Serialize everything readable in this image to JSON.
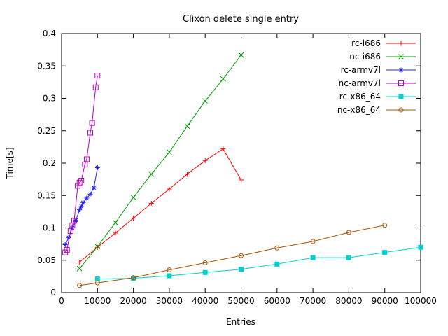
{
  "chart": {
    "title": "Clixon delete single entry",
    "xlabel": "Entries",
    "ylabel": "Time[s]"
  },
  "chart_data": {
    "type": "line",
    "title": "Clixon delete single entry",
    "xlabel": "Entries",
    "ylabel": "Time[s]",
    "xlim": [
      0,
      100000
    ],
    "ylim": [
      0,
      0.4
    ],
    "xticks": [
      0,
      10000,
      20000,
      30000,
      40000,
      50000,
      60000,
      70000,
      80000,
      90000,
      100000
    ],
    "yticks": [
      0,
      0.05,
      0.1,
      0.15,
      0.2,
      0.25,
      0.3,
      0.35,
      0.4
    ],
    "grid": false,
    "legend_position": "top-right",
    "axis_color": "#000000",
    "background": "#ffffff",
    "series": [
      {
        "name": "rc-i686",
        "color": "#ff0000",
        "marker": "plus",
        "points": [
          [
            5000,
            0.047
          ],
          [
            10000,
            0.07
          ],
          [
            15000,
            0.092
          ],
          [
            20000,
            0.115
          ],
          [
            25000,
            0.138
          ],
          [
            30000,
            0.16
          ],
          [
            35000,
            0.183
          ],
          [
            40000,
            0.204
          ],
          [
            45000,
            0.222
          ],
          [
            50000,
            0.174
          ]
        ]
      },
      {
        "name": "nc-i686",
        "color": "#00a000",
        "marker": "cross",
        "points": [
          [
            5000,
            0.037
          ],
          [
            10000,
            0.071
          ],
          [
            15000,
            0.108
          ],
          [
            20000,
            0.147
          ],
          [
            25000,
            0.183
          ],
          [
            30000,
            0.217
          ],
          [
            35000,
            0.257
          ],
          [
            40000,
            0.296
          ],
          [
            45000,
            0.33
          ],
          [
            50000,
            0.367
          ]
        ]
      },
      {
        "name": "rc-armv7l",
        "color": "#2020ff",
        "marker": "asterisk",
        "points": [
          [
            1000,
            0.074
          ],
          [
            2000,
            0.085
          ],
          [
            3000,
            0.1
          ],
          [
            4000,
            0.112
          ],
          [
            5000,
            0.128
          ],
          [
            5500,
            0.133
          ],
          [
            6000,
            0.139
          ],
          [
            7000,
            0.146
          ],
          [
            8000,
            0.152
          ],
          [
            9000,
            0.162
          ],
          [
            10000,
            0.193
          ]
        ]
      },
      {
        "name": "nc-armv7l",
        "color": "#b800c0",
        "marker": "square-open",
        "points": [
          [
            1000,
            0.062
          ],
          [
            1500,
            0.066
          ],
          [
            2500,
            0.095
          ],
          [
            3000,
            0.104
          ],
          [
            3500,
            0.111
          ],
          [
            4500,
            0.165
          ],
          [
            5000,
            0.17
          ],
          [
            5500,
            0.173
          ],
          [
            6500,
            0.198
          ],
          [
            7000,
            0.206
          ],
          [
            8000,
            0.247
          ],
          [
            8500,
            0.262
          ],
          [
            9500,
            0.317
          ],
          [
            10000,
            0.335
          ]
        ]
      },
      {
        "name": "rc-x86_64",
        "color": "#00d0d0",
        "marker": "square-filled",
        "points": [
          [
            10000,
            0.021
          ],
          [
            20000,
            0.022
          ],
          [
            30000,
            0.026
          ],
          [
            40000,
            0.031
          ],
          [
            50000,
            0.036
          ],
          [
            60000,
            0.044
          ],
          [
            70000,
            0.054
          ],
          [
            80000,
            0.054
          ],
          [
            90000,
            0.062
          ],
          [
            100000,
            0.07
          ]
        ]
      },
      {
        "name": "nc-x86_64",
        "color": "#a85400",
        "marker": "circle-open",
        "points": [
          [
            5000,
            0.011
          ],
          [
            10000,
            0.015
          ],
          [
            20000,
            0.023
          ],
          [
            30000,
            0.035
          ],
          [
            40000,
            0.046
          ],
          [
            50000,
            0.057
          ],
          [
            60000,
            0.069
          ],
          [
            70000,
            0.079
          ],
          [
            80000,
            0.093
          ],
          [
            90000,
            0.104
          ]
        ]
      }
    ]
  }
}
